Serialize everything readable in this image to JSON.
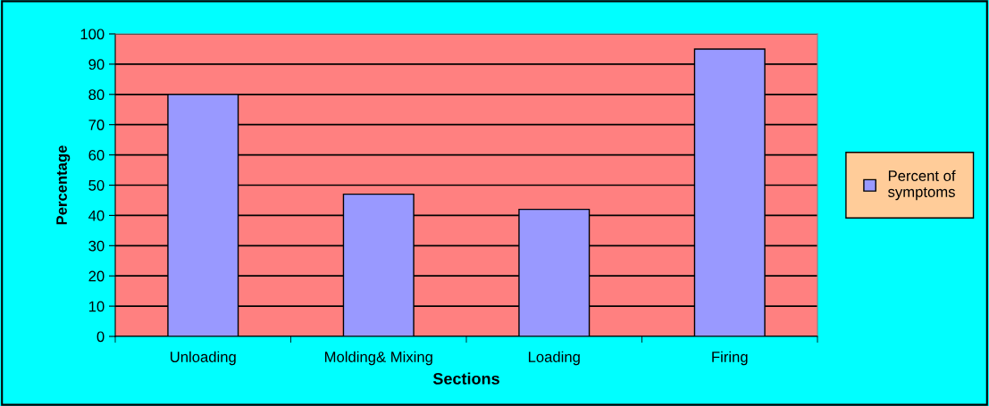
{
  "chart_data": {
    "type": "bar",
    "xlabel": "Sections",
    "ylabel": "Percentage",
    "categories": [
      "Unloading",
      "Molding& Mixing",
      "Loading",
      "Firing"
    ],
    "series": [
      {
        "name": "Percent of symptoms",
        "color": "#9999ff",
        "values": [
          80,
          47,
          42,
          95
        ]
      }
    ],
    "ylim": [
      0,
      100
    ],
    "yticks": [
      0,
      10,
      20,
      30,
      40,
      50,
      60,
      70,
      80,
      90,
      100
    ],
    "grid": "y",
    "legend": "right"
  }
}
